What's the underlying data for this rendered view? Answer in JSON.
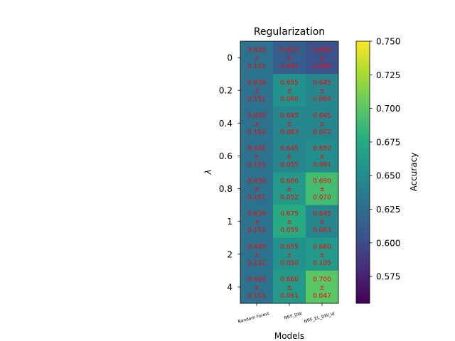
{
  "chart_data": {
    "type": "heatmap",
    "title": "Regularization",
    "xlabel": "Models",
    "ylabel": "λ",
    "categories": [
      "Random Forest",
      "NRF_DW",
      "NRF_EL_DW_ld"
    ],
    "rows": [
      "0",
      "0.2",
      "0.4",
      "0.6",
      "0.8",
      "1",
      "2",
      "4"
    ],
    "cells": [
      [
        {
          "mean": "0.630",
          "std": "0.151",
          "value": 0.63
        },
        {
          "mean": "0.615",
          "std": "0.091",
          "value": 0.615
        },
        {
          "mean": "0.605",
          "std": "0.090",
          "value": 0.605
        }
      ],
      [
        {
          "mean": "0.630",
          "std": "0.151",
          "value": 0.63
        },
        {
          "mean": "0.655",
          "std": "0.060",
          "value": 0.655
        },
        {
          "mean": "0.645",
          "std": "0.064",
          "value": 0.645
        }
      ],
      [
        {
          "mean": "0.630",
          "std": "0.151",
          "value": 0.63
        },
        {
          "mean": "0.645",
          "std": "0.083",
          "value": 0.645
        },
        {
          "mean": "0.645",
          "std": "0.072",
          "value": 0.645
        }
      ],
      [
        {
          "mean": "0.630",
          "std": "0.151",
          "value": 0.63
        },
        {
          "mean": "0.645",
          "std": "0.055",
          "value": 0.645
        },
        {
          "mean": "0.650",
          "std": "0.091",
          "value": 0.65
        }
      ],
      [
        {
          "mean": "0.630",
          "std": "0.151",
          "value": 0.63
        },
        {
          "mean": "0.660",
          "std": "0.052",
          "value": 0.66
        },
        {
          "mean": "0.690",
          "std": "0.070",
          "value": 0.69
        }
      ],
      [
        {
          "mean": "0.630",
          "std": "0.151",
          "value": 0.63
        },
        {
          "mean": "0.675",
          "std": "0.059",
          "value": 0.675
        },
        {
          "mean": "0.645",
          "std": "0.083",
          "value": 0.645
        }
      ],
      [
        {
          "mean": "0.630",
          "std": "0.151",
          "value": 0.63
        },
        {
          "mean": "0.655",
          "std": "0.050",
          "value": 0.655
        },
        {
          "mean": "0.660",
          "std": "0.105",
          "value": 0.66
        }
      ],
      [
        {
          "mean": "0.630",
          "std": "0.151",
          "value": 0.63
        },
        {
          "mean": "0.660",
          "std": "0.061",
          "value": 0.66
        },
        {
          "mean": "0.700",
          "std": "0.047",
          "value": 0.7
        }
      ]
    ],
    "pm_symbol": "±",
    "annotation_color": "#ff0000",
    "colormap": "viridis",
    "colorbar": {
      "label": "Accuracy",
      "range": [
        0.555,
        0.75
      ],
      "ticks": [
        "0.575",
        "0.600",
        "0.625",
        "0.650",
        "0.675",
        "0.700",
        "0.725",
        "0.750"
      ]
    },
    "grid": false
  }
}
